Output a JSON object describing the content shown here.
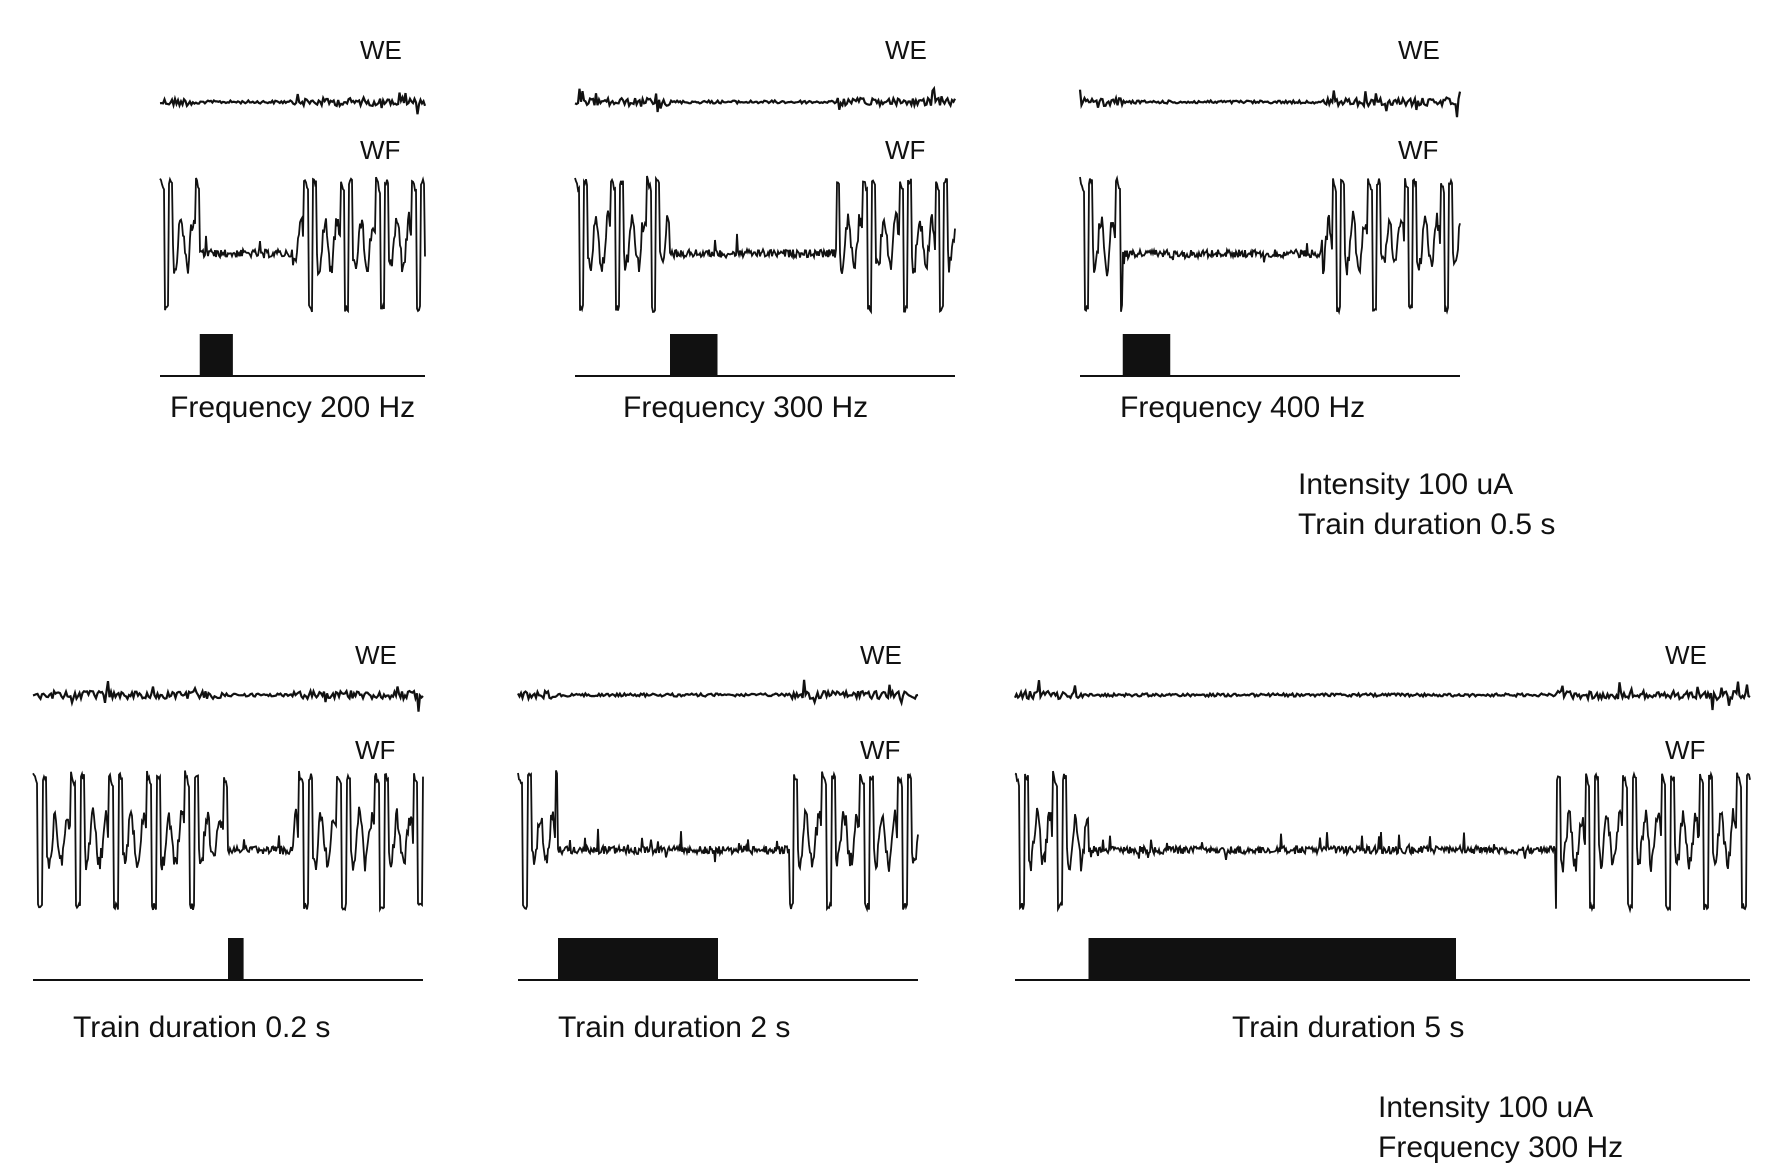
{
  "chart_data": {
    "type": "line",
    "channel_labels": [
      "WE",
      "WF"
    ],
    "groups": [
      {
        "panels": [
          {
            "caption": "Frequency 200 Hz",
            "frequency_hz": 200,
            "train_duration_s": 0.5,
            "recording_s": 4
          },
          {
            "caption": "Frequency 300 Hz",
            "frequency_hz": 300,
            "train_duration_s": 0.5,
            "recording_s": 4
          },
          {
            "caption": "Frequency 400 Hz",
            "frequency_hz": 400,
            "train_duration_s": 0.5,
            "recording_s": 4
          }
        ],
        "conditions": [
          "Intensity 100 uA",
          "Train duration 0.5 s"
        ]
      },
      {
        "panels": [
          {
            "caption": "Train duration 0.2 s",
            "frequency_hz": 300,
            "train_duration_s": 0.2,
            "recording_s": 5
          },
          {
            "caption": "Train duration 2 s",
            "frequency_hz": 300,
            "train_duration_s": 2,
            "recording_s": 5
          },
          {
            "caption": "Train duration 5 s",
            "frequency_hz": 300,
            "train_duration_s": 5,
            "recording_s": 10
          }
        ],
        "conditions": [
          "Intensity 100 uA",
          "Frequency 300 Hz"
        ]
      }
    ]
  },
  "colors": {
    "trace": "#111111",
    "stimulus": "#111111",
    "background": "#ffffff"
  }
}
